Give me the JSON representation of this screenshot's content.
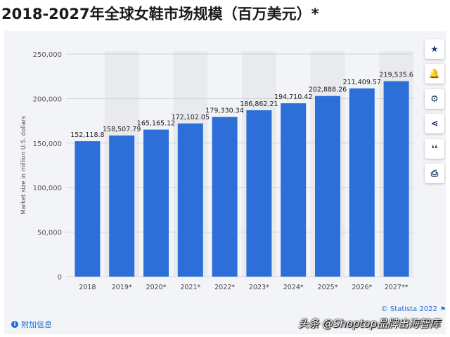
{
  "title": "2018-2027年全球女鞋市场规模（百万美元）*",
  "credit": "© Statista 2022",
  "info_link": "附加信息",
  "watermark": "头条 @Shoptop品牌出海智库",
  "side_buttons": [
    {
      "icon": "star-icon",
      "glyph": "★"
    },
    {
      "icon": "bell-icon",
      "glyph": "🔔"
    },
    {
      "icon": "gear-icon",
      "glyph": "⚙"
    },
    {
      "icon": "share-icon",
      "glyph": "⋖"
    },
    {
      "icon": "quote-icon",
      "glyph": "❛❛"
    },
    {
      "icon": "print-icon",
      "glyph": "⎙"
    }
  ],
  "colors": {
    "bar": "#2d6fd9",
    "band": "#e9eaee",
    "grid": "#cfd3da",
    "text": "#333333",
    "link": "#1d6bd6"
  },
  "chart_data": {
    "type": "bar",
    "categories": [
      "2018",
      "2019*",
      "2020*",
      "2021*",
      "2022*",
      "2023*",
      "2024*",
      "2025*",
      "2026*",
      "2027**"
    ],
    "values": [
      152118.8,
      158507.79,
      165165.12,
      172102.05,
      179330.34,
      186862.21,
      194710.42,
      202888.26,
      211409.57,
      219535.6
    ],
    "data_labels": [
      "152,118.8",
      "158,507.79",
      "165,165.12",
      "172,102.05",
      "179,330.34",
      "186,862.21",
      "194,710.42",
      "202,888.26",
      "211,409.57",
      "219,535.6"
    ],
    "ylabel": "Market size in million U.S. dollars",
    "ylim": [
      0,
      250000
    ],
    "yticks": [
      0,
      50000,
      100000,
      150000,
      200000,
      250000
    ],
    "ytick_labels": [
      "0",
      "50,000",
      "100,000",
      "150,000",
      "200,000",
      "250,000"
    ],
    "grid": true
  }
}
